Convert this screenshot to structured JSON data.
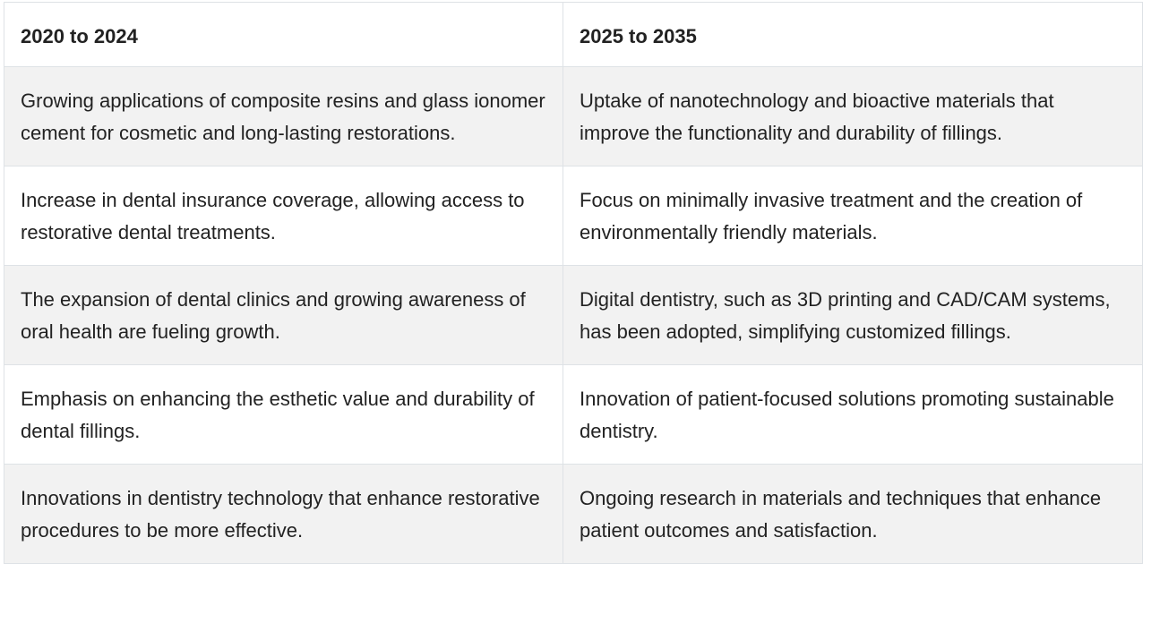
{
  "table": {
    "headers": [
      "2020 to 2024",
      "2025 to 2035"
    ],
    "rows": [
      [
        "Growing applications of composite resins and glass ionomer cement for cosmetic and long-lasting restorations.",
        "Uptake of nanotechnology and bioactive materials that improve the functionality and durability of fillings."
      ],
      [
        "Increase in dental insurance coverage, allowing access to restorative dental treatments.",
        "Focus on minimally invasive treatment and the creation of environmentally friendly materials."
      ],
      [
        "The expansion of dental clinics and growing awareness of oral health are fueling growth.",
        "Digital dentistry, such as 3D printing and CAD/CAM systems, has been adopted, simplifying customized fillings."
      ],
      [
        "Emphasis on enhancing the esthetic value and durability of dental fillings.",
        "Innovation of patient-focused solutions promoting sustainable dentistry."
      ],
      [
        "Innovations in dentistry technology that enhance restorative procedures to be more effective.",
        "Ongoing research in materials and techniques that enhance patient outcomes and satisfaction."
      ]
    ]
  }
}
